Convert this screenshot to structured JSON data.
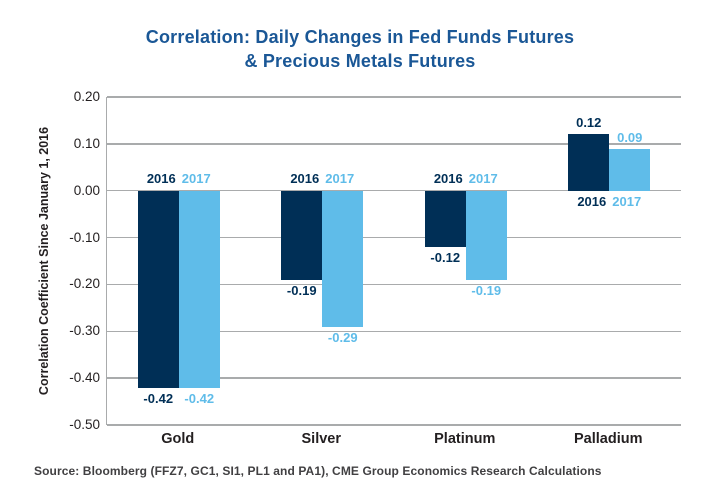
{
  "title": {
    "line1": "Correlation: Daily Changes in Fed Funds Futures",
    "line2": "& Precious Metals Futures"
  },
  "source_text": "Source: Bloomberg (FFZ7, GC1, SI1, PL1 and PA1), CME Group Economics Research Calculations",
  "colors": {
    "series_2016": "#002f56",
    "series_2017": "#5fbce9",
    "title_blue": "#1a5796",
    "grid_gray": "#a9abac",
    "axis_text": "#231f20",
    "source_text": "#414042"
  },
  "chart_data": {
    "type": "bar",
    "title": "Correlation: Daily Changes in Fed Funds Futures & Precious Metals Futures",
    "ylabel": "Correlation Coefficient Since January 1, 2016",
    "xlabel": "",
    "categories": [
      "Gold",
      "Silver",
      "Platinum",
      "Palladium"
    ],
    "series": [
      {
        "name": "2016",
        "color_key": "series_2016",
        "values": [
          -0.42,
          -0.19,
          -0.12,
          0.12
        ]
      },
      {
        "name": "2017",
        "color_key": "series_2017",
        "values": [
          -0.42,
          -0.29,
          -0.19,
          0.09
        ]
      }
    ],
    "ylim": [
      -0.5,
      0.2
    ],
    "yticks": [
      "0.20",
      "0.10",
      "0.00",
      "-0.10",
      "-0.20",
      "-0.30",
      "-0.40",
      "-0.50"
    ],
    "grid": true,
    "value_labels": true,
    "legend_position": "year labels at zero line of each group"
  }
}
